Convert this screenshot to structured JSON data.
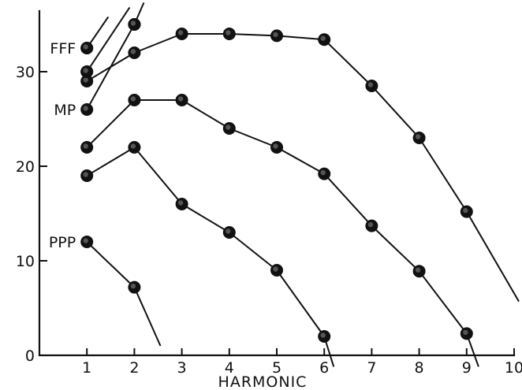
{
  "chart_data": {
    "type": "line",
    "xlabel": "HARMONIC",
    "ylabel": "",
    "xlim": [
      0,
      10
    ],
    "ylim": [
      0,
      35
    ],
    "x_ticks": [
      "1",
      "2",
      "3",
      "4",
      "5",
      "6",
      "7",
      "8",
      "9",
      "10"
    ],
    "y_ticks": [
      "0",
      "10",
      "20",
      "30"
    ],
    "y_tick_values": [
      0,
      10,
      20,
      30
    ],
    "grid": false,
    "legend": "none",
    "series": [
      {
        "name": "FFF",
        "x": [
          1,
          2,
          3,
          4,
          5,
          6,
          7,
          8,
          9,
          10.1
        ],
        "y": [
          29.0,
          32.0,
          34.0,
          34.0,
          33.8,
          33.4,
          28.5,
          23.0,
          15.2,
          5.7
        ]
      },
      {
        "x": [
          1,
          2,
          3,
          4,
          5,
          6,
          7,
          8,
          9,
          9.25
        ],
        "y": [
          22.0,
          27.0,
          27.0,
          24.0,
          22.0,
          19.2,
          13.7,
          8.9,
          2.3,
          -1.2
        ]
      },
      {
        "name": "MP",
        "x": [
          1,
          2,
          3,
          4,
          5,
          6,
          6.2
        ],
        "y": [
          19.0,
          22.0,
          16.0,
          13.0,
          9.0,
          2.0,
          -1.2
        ]
      },
      {
        "name": "PPP",
        "x": [
          1,
          2,
          2.55
        ],
        "y": [
          12.0,
          7.2,
          1.0
        ]
      },
      {
        "x": [
          1,
          2
        ],
        "y": [
          26.0,
          35.0
        ]
      },
      {
        "x": [
          1,
          1.9
        ],
        "y": [
          30.0,
          36.8
        ]
      },
      {
        "x": [
          1,
          1.45
        ],
        "y": [
          32.5,
          35.8
        ]
      },
      {
        "x": [
          2,
          2.2
        ],
        "y": [
          35.0,
          37.3
        ]
      }
    ],
    "unlabeled_points": [
      {
        "x": 2,
        "y": 35.0
      },
      {
        "x": 1,
        "y": 30.0
      },
      {
        "x": 1,
        "y": 32.5
      }
    ],
    "annotations": [
      {
        "text": "FFF",
        "x": 1,
        "y": 32.5
      },
      {
        "text": "MP",
        "x": 1,
        "y": 26.0
      },
      {
        "text": "PPP",
        "x": 1,
        "y": 12.0
      }
    ]
  }
}
